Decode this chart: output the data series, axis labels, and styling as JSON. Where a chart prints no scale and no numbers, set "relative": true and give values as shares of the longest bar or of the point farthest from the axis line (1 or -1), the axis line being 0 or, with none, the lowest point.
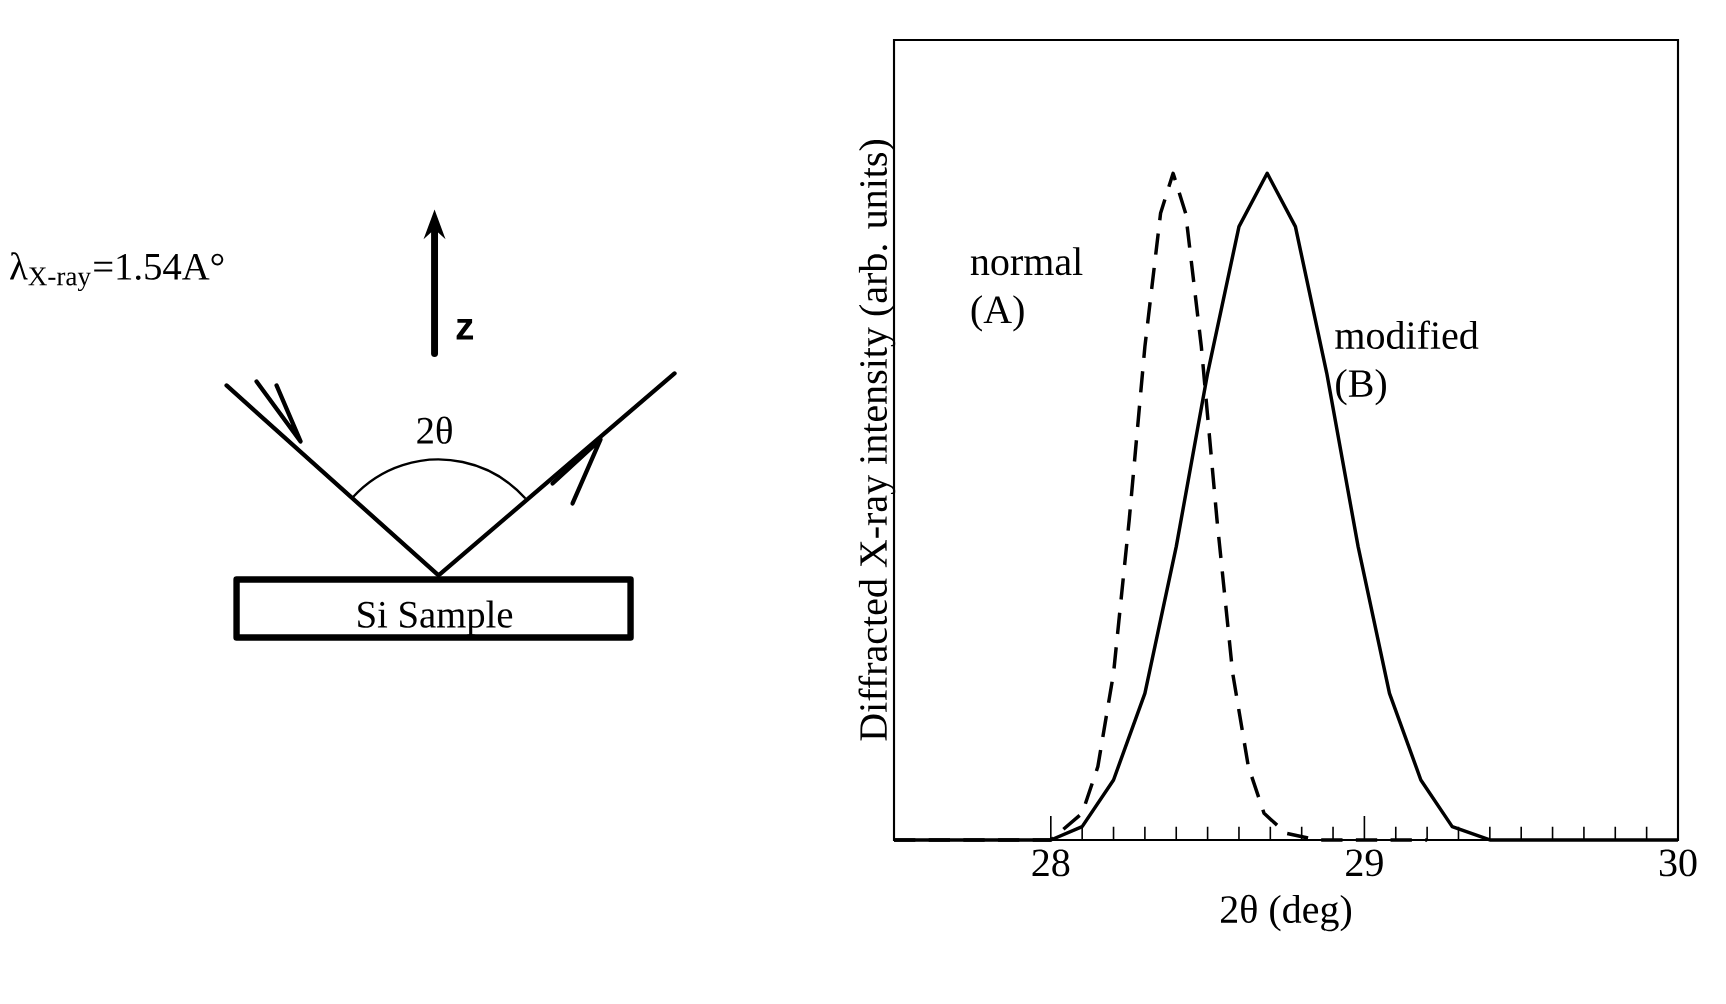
{
  "chart_data": [
    {
      "type": "other",
      "annotations": [
        "λ$_{X-ray}$=1.54A°",
        "z",
        "2θ",
        "Si Sample"
      ]
    },
    {
      "type": "line",
      "xlabel": "2θ (deg)",
      "ylabel": "Diffracted X-ray intensity (arb. units)",
      "relative": true,
      "xlim": [
        27.5,
        30
      ],
      "xticks": [
        28,
        29,
        30
      ],
      "series": [
        {
          "name": "normal (A)",
          "color": "#000000",
          "line_style": "dashed",
          "x": [
            27.5,
            28.0,
            28.1,
            28.15,
            28.2,
            28.25,
            28.3,
            28.35,
            28.39,
            28.43,
            28.48,
            28.53,
            28.58,
            28.63,
            28.68,
            28.75,
            28.85,
            29.2
          ],
          "values": [
            0,
            0,
            0.04,
            0.11,
            0.25,
            0.48,
            0.74,
            0.94,
            1,
            0.94,
            0.74,
            0.48,
            0.25,
            0.11,
            0.04,
            0.01,
            0,
            0
          ]
        },
        {
          "name": "modified (B)",
          "color": "#000000",
          "line_style": "solid",
          "x": [
            27.5,
            28.0,
            28.1,
            28.2,
            28.3,
            28.4,
            28.5,
            28.6,
            28.69,
            28.78,
            28.88,
            28.98,
            29.08,
            29.18,
            29.28,
            29.4,
            30
          ],
          "values": [
            0,
            0,
            0.02,
            0.09,
            0.22,
            0.44,
            0.7,
            0.92,
            1,
            0.92,
            0.7,
            0.44,
            0.22,
            0.09,
            0.02,
            0,
            0
          ]
        }
      ]
    }
  ]
}
